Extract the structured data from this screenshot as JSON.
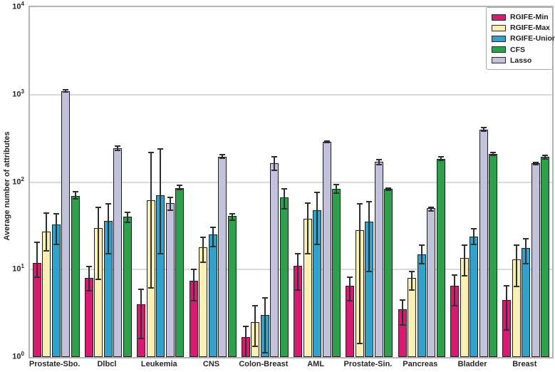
{
  "chart_data": {
    "type": "bar",
    "title": "",
    "xlabel": "",
    "ylabel": "Average number of attributes",
    "y_scale": "log10",
    "ylim": [
      1,
      10000
    ],
    "ytick_labels": [
      "10^0",
      "10^1",
      "10^2",
      "10^3",
      "10^4"
    ],
    "grid": "horizontal",
    "legend_position": "upper-right",
    "categories": [
      "Prostate-Sbo.",
      "Dlbcl",
      "Leukemia",
      "CNS",
      "Colon-Breast",
      "AML",
      "Prostate-Sin.",
      "Pancreas",
      "Bladder",
      "Breast"
    ],
    "series": [
      {
        "name": "RGIFE-Min",
        "color": "#d81b70",
        "dot_color": "rgba(255,255,255,0.55)",
        "values": [
          12,
          8,
          4,
          7.5,
          1.7,
          11,
          6.5,
          3.5,
          6.5,
          4.5
        ],
        "err_lo": [
          8,
          5.6,
          1.6,
          4.3,
          1.0,
          5.7,
          4.3,
          2.3,
          3.8,
          2.0
        ],
        "err_hi": [
          21,
          11,
          6,
          10.2,
          2.3,
          15.4,
          8.4,
          4.6,
          8.8,
          6.6
        ]
      },
      {
        "name": "RGIFE-Max",
        "color": "#fbefb4",
        "dot_color": "rgba(160,120,60,0.45)",
        "values": [
          27,
          30,
          62,
          18,
          2.5,
          38,
          28,
          8,
          13.5,
          13
        ],
        "err_lo": [
          16,
          7.6,
          6,
          12,
          1.3,
          15,
          1.4,
          5.7,
          8.3,
          6.3
        ],
        "err_hi": [
          45,
          52,
          220,
          24,
          3.9,
          59,
          57,
          9.6,
          19.5,
          19.5
        ]
      },
      {
        "name": "RGIFE-Union",
        "color": "#30a2cb",
        "dot_color": "rgba(150,90,30,0.5)",
        "values": [
          33,
          36,
          71,
          25,
          3.0,
          48,
          35,
          15,
          24,
          17.5
        ],
        "err_lo": [
          19,
          15,
          15,
          18,
          1.1,
          19,
          9.3,
          11.5,
          19,
          11.5
        ],
        "err_hi": [
          44,
          57,
          245,
          31,
          4.8,
          77,
          61,
          19.5,
          30,
          23
        ]
      },
      {
        "name": "Lasso",
        "color": "#c3c2dd",
        "dot_color": "rgba(90,90,110,0.4)",
        "values": [
          1100,
          245,
          57,
          195,
          165,
          290,
          170,
          50,
          400,
          165
        ],
        "err_lo": [
          1060,
          225,
          47,
          185,
          133,
          278,
          155,
          46,
          378,
          155
        ],
        "err_hi": [
          1160,
          262,
          68,
          210,
          200,
          302,
          185,
          52,
          430,
          172
        ]
      },
      {
        "name": "CFS",
        "color": "#2ea04c",
        "dot_color": "rgba(200,130,60,0.4)",
        "values": [
          70,
          40,
          86,
          41,
          67,
          84,
          83,
          185,
          210,
          195
        ],
        "err_lo": [
          63,
          34,
          80,
          36,
          49,
          73,
          79,
          175,
          197,
          182
        ],
        "err_hi": [
          79,
          46,
          94,
          44.5,
          86,
          96,
          87,
          200,
          223,
          207
        ]
      }
    ],
    "legend_order": [
      "RGIFE-Min",
      "RGIFE-Max",
      "RGIFE-Union",
      "CFS",
      "Lasso"
    ]
  }
}
